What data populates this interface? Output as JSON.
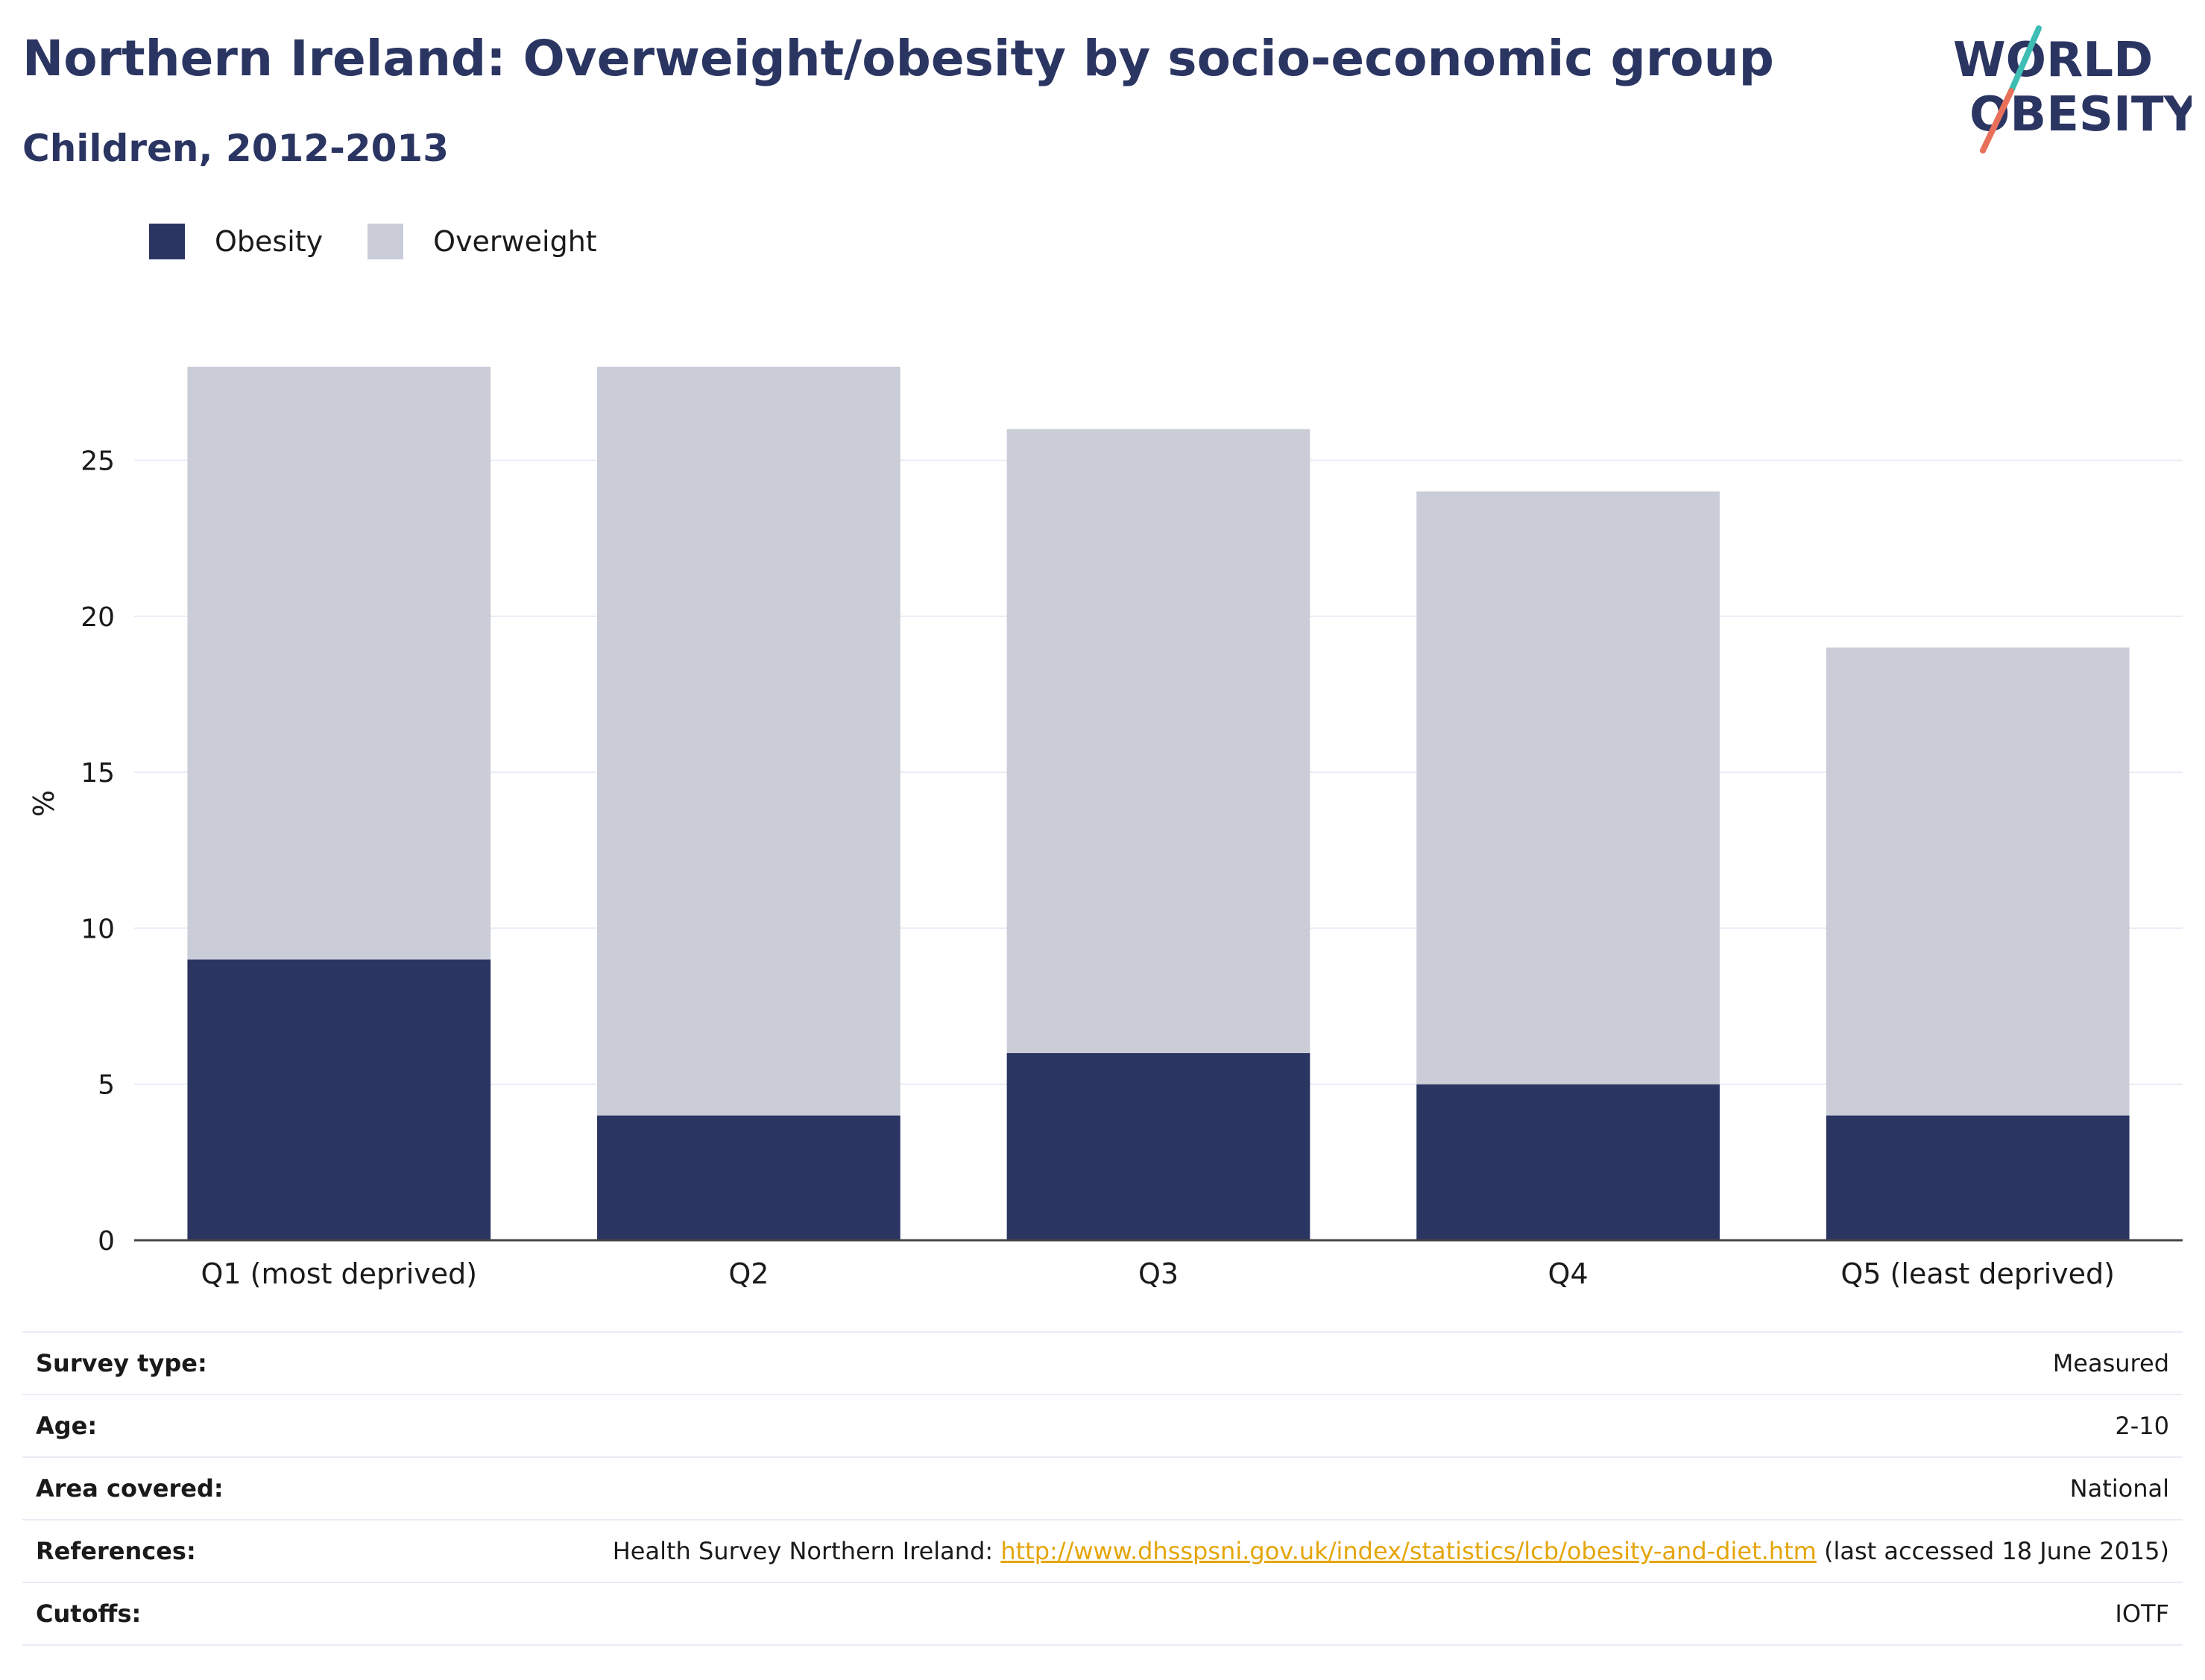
{
  "header": {
    "title": "Northern Ireland: Overweight/obesity by socio-economic group",
    "subtitle": "Children, 2012-2013"
  },
  "logo": {
    "line1": "WORLD",
    "line2": "OBESITY",
    "slash_top_color": "#3dbdb4",
    "slash_bottom_color": "#e8705a",
    "text_color": "#2b3562"
  },
  "colors": {
    "obesity": "#2b3562",
    "overweight": "#cacdd8",
    "grid": "#e9ecf5",
    "axis": "#444444"
  },
  "legend": [
    {
      "label": "Obesity",
      "color": "#2b3562"
    },
    {
      "label": "Overweight",
      "color": "#cacdd8"
    }
  ],
  "chart_data": {
    "type": "bar",
    "stacked": true,
    "categories": [
      "Q1 (most deprived)",
      "Q2",
      "Q3",
      "Q4",
      "Q5 (least deprived)"
    ],
    "series": [
      {
        "name": "Obesity",
        "values": [
          9,
          4,
          6,
          5,
          4
        ]
      },
      {
        "name": "Overweight",
        "values": [
          19,
          24,
          20,
          19,
          15
        ]
      }
    ],
    "title": "Northern Ireland: Overweight/obesity by socio-economic group",
    "subtitle": "Children, 2012-2013",
    "xlabel": "",
    "ylabel": "%",
    "ylim": [
      0,
      28
    ],
    "yticks": [
      0,
      5,
      10,
      15,
      20,
      25
    ],
    "grid": true,
    "legend_position": "top-left"
  },
  "meta": {
    "survey_type": {
      "label": "Survey type:",
      "value": "Measured"
    },
    "age": {
      "label": "Age:",
      "value": "2-10"
    },
    "area": {
      "label": "Area covered:",
      "value": "National"
    },
    "references": {
      "label": "References:",
      "prefix": "Health Survey Northern Ireland: ",
      "link": "http://www.dhsspsni.gov.uk/index/statistics/lcb/obesity-and-diet.htm",
      "suffix": " (last accessed 18 June 2015)"
    },
    "cutoffs": {
      "label": "Cutoffs:",
      "value": "IOTF"
    }
  }
}
